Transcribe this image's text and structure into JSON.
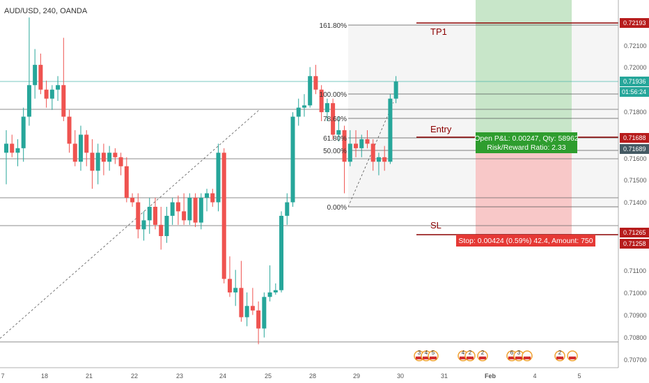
{
  "header": {
    "symbol_label": "AUD/USD, 240, OANDA"
  },
  "colors": {
    "up": "#26a69a",
    "down": "#ef5350",
    "line_dark": "#8b0000",
    "fib": "#555555"
  },
  "chart_data": {
    "type": "candlestick",
    "y_axis_ticks": [
      "0.72100",
      "0.72000",
      "0.71800",
      "0.71600",
      "0.71500",
      "0.71400",
      "0.71100",
      "0.71000",
      "0.70900",
      "0.70800",
      "0.70700"
    ],
    "x_axis_ticks": [
      "7",
      "18",
      "21",
      "22",
      "23",
      "24",
      "25",
      "28",
      "29",
      "30",
      "31",
      "Feb",
      "4",
      "5"
    ],
    "price_tags": [
      {
        "value": "0.72193",
        "color": "#b71c1c"
      },
      {
        "value": "0.71936",
        "color": "#26a69a"
      },
      {
        "value": "01:56:24",
        "color": "#26a69a"
      },
      {
        "value": "0.71688",
        "color": "#b71c1c"
      },
      {
        "value": "0.71689",
        "color": "#455a64"
      },
      {
        "value": "0.71265",
        "color": "#b71c1c"
      },
      {
        "value": "0.71258",
        "color": "#b71c1c"
      }
    ],
    "fib_levels": [
      "161.80%",
      "100.00%",
      "78.60%",
      "61.80%",
      "50.00%",
      "0.00%"
    ],
    "trade_lines": [
      "TP1",
      "Entry",
      "SL"
    ],
    "position_box": {
      "pnl_label": "Open P&L: 0.00247, Qty: 58962",
      "ratio_label": "Risk/Reward Ratio: 2.33",
      "stop_label": "Stop: 0.00424 (0.59%) 42.4, Amount: 750"
    },
    "candles": [
      {
        "o": 0.7162,
        "h": 0.7172,
        "l": 0.7148,
        "c": 0.7166
      },
      {
        "o": 0.7166,
        "h": 0.717,
        "l": 0.716,
        "c": 0.7162
      },
      {
        "o": 0.7162,
        "h": 0.7168,
        "l": 0.7156,
        "c": 0.7164
      },
      {
        "o": 0.7164,
        "h": 0.7182,
        "l": 0.7158,
        "c": 0.7178
      },
      {
        "o": 0.7178,
        "h": 0.7222,
        "l": 0.7174,
        "c": 0.7192
      },
      {
        "o": 0.7192,
        "h": 0.7208,
        "l": 0.7186,
        "c": 0.7201
      },
      {
        "o": 0.7201,
        "h": 0.7206,
        "l": 0.7188,
        "c": 0.719
      },
      {
        "o": 0.719,
        "h": 0.7194,
        "l": 0.7182,
        "c": 0.7186
      },
      {
        "o": 0.7186,
        "h": 0.7192,
        "l": 0.7181,
        "c": 0.719
      },
      {
        "o": 0.719,
        "h": 0.7196,
        "l": 0.7185,
        "c": 0.7192
      },
      {
        "o": 0.7192,
        "h": 0.7213,
        "l": 0.7176,
        "c": 0.7178
      },
      {
        "o": 0.7178,
        "h": 0.7181,
        "l": 0.7162,
        "c": 0.7166
      },
      {
        "o": 0.7166,
        "h": 0.7172,
        "l": 0.7156,
        "c": 0.7158
      },
      {
        "o": 0.7158,
        "h": 0.7174,
        "l": 0.7154,
        "c": 0.717
      },
      {
        "o": 0.717,
        "h": 0.7172,
        "l": 0.7156,
        "c": 0.7162
      },
      {
        "o": 0.7162,
        "h": 0.7168,
        "l": 0.7146,
        "c": 0.7154
      },
      {
        "o": 0.7154,
        "h": 0.7166,
        "l": 0.7148,
        "c": 0.7162
      },
      {
        "o": 0.7162,
        "h": 0.7166,
        "l": 0.7152,
        "c": 0.7158
      },
      {
        "o": 0.7158,
        "h": 0.7165,
        "l": 0.7154,
        "c": 0.7162
      },
      {
        "o": 0.7162,
        "h": 0.7164,
        "l": 0.7157,
        "c": 0.716
      },
      {
        "o": 0.716,
        "h": 0.7162,
        "l": 0.7152,
        "c": 0.7156
      },
      {
        "o": 0.7156,
        "h": 0.716,
        "l": 0.714,
        "c": 0.7142
      },
      {
        "o": 0.7142,
        "h": 0.7144,
        "l": 0.7138,
        "c": 0.714
      },
      {
        "o": 0.714,
        "h": 0.7144,
        "l": 0.7124,
        "c": 0.7128
      },
      {
        "o": 0.7128,
        "h": 0.7136,
        "l": 0.7123,
        "c": 0.7132
      },
      {
        "o": 0.7132,
        "h": 0.7142,
        "l": 0.7126,
        "c": 0.7138
      },
      {
        "o": 0.7138,
        "h": 0.7142,
        "l": 0.7128,
        "c": 0.713
      },
      {
        "o": 0.713,
        "h": 0.7138,
        "l": 0.7119,
        "c": 0.7125
      },
      {
        "o": 0.7125,
        "h": 0.7138,
        "l": 0.7122,
        "c": 0.7134
      },
      {
        "o": 0.7134,
        "h": 0.7142,
        "l": 0.713,
        "c": 0.714
      },
      {
        "o": 0.714,
        "h": 0.7143,
        "l": 0.713,
        "c": 0.7136
      },
      {
        "o": 0.7136,
        "h": 0.7144,
        "l": 0.713,
        "c": 0.7132
      },
      {
        "o": 0.7132,
        "h": 0.7144,
        "l": 0.713,
        "c": 0.7142
      },
      {
        "o": 0.7142,
        "h": 0.7144,
        "l": 0.7129,
        "c": 0.7131
      },
      {
        "o": 0.7131,
        "h": 0.7144,
        "l": 0.7128,
        "c": 0.7142
      },
      {
        "o": 0.7142,
        "h": 0.7146,
        "l": 0.7136,
        "c": 0.7144
      },
      {
        "o": 0.7144,
        "h": 0.7146,
        "l": 0.7138,
        "c": 0.714
      },
      {
        "o": 0.714,
        "h": 0.7166,
        "l": 0.7136,
        "c": 0.7162
      },
      {
        "o": 0.7162,
        "h": 0.7164,
        "l": 0.7104,
        "c": 0.7106
      },
      {
        "o": 0.7106,
        "h": 0.7116,
        "l": 0.7098,
        "c": 0.71
      },
      {
        "o": 0.71,
        "h": 0.711,
        "l": 0.7094,
        "c": 0.7102
      },
      {
        "o": 0.7102,
        "h": 0.7114,
        "l": 0.7087,
        "c": 0.7089
      },
      {
        "o": 0.7089,
        "h": 0.71,
        "l": 0.7085,
        "c": 0.7094
      },
      {
        "o": 0.7094,
        "h": 0.7102,
        "l": 0.709,
        "c": 0.7092
      },
      {
        "o": 0.7092,
        "h": 0.7096,
        "l": 0.7077,
        "c": 0.7084
      },
      {
        "o": 0.7084,
        "h": 0.71,
        "l": 0.708,
        "c": 0.7098
      },
      {
        "o": 0.7098,
        "h": 0.7112,
        "l": 0.7096,
        "c": 0.71
      },
      {
        "o": 0.71,
        "h": 0.7104,
        "l": 0.7099,
        "c": 0.7101
      },
      {
        "o": 0.7101,
        "h": 0.7136,
        "l": 0.71,
        "c": 0.7134
      },
      {
        "o": 0.7134,
        "h": 0.7144,
        "l": 0.713,
        "c": 0.714
      },
      {
        "o": 0.714,
        "h": 0.718,
        "l": 0.7138,
        "c": 0.7178
      },
      {
        "o": 0.7178,
        "h": 0.7186,
        "l": 0.7174,
        "c": 0.7182
      },
      {
        "o": 0.7182,
        "h": 0.7188,
        "l": 0.7178,
        "c": 0.7183
      },
      {
        "o": 0.7183,
        "h": 0.72,
        "l": 0.7182,
        "c": 0.7196
      },
      {
        "o": 0.7196,
        "h": 0.7201,
        "l": 0.7188,
        "c": 0.719
      },
      {
        "o": 0.719,
        "h": 0.7192,
        "l": 0.7176,
        "c": 0.718
      },
      {
        "o": 0.718,
        "h": 0.7186,
        "l": 0.7176,
        "c": 0.7184
      },
      {
        "o": 0.7184,
        "h": 0.7186,
        "l": 0.7168,
        "c": 0.717
      },
      {
        "o": 0.717,
        "h": 0.7178,
        "l": 0.7167,
        "c": 0.7172
      },
      {
        "o": 0.7172,
        "h": 0.7174,
        "l": 0.7144,
        "c": 0.7158
      },
      {
        "o": 0.7158,
        "h": 0.7172,
        "l": 0.7156,
        "c": 0.7166
      },
      {
        "o": 0.7166,
        "h": 0.7172,
        "l": 0.716,
        "c": 0.7164
      },
      {
        "o": 0.7164,
        "h": 0.717,
        "l": 0.716,
        "c": 0.7168
      },
      {
        "o": 0.7168,
        "h": 0.7172,
        "l": 0.7164,
        "c": 0.7166
      },
      {
        "o": 0.7166,
        "h": 0.7168,
        "l": 0.7154,
        "c": 0.7158
      },
      {
        "o": 0.7158,
        "h": 0.7162,
        "l": 0.7152,
        "c": 0.716
      },
      {
        "o": 0.716,
        "h": 0.7165,
        "l": 0.7154,
        "c": 0.7158
      },
      {
        "o": 0.7158,
        "h": 0.7188,
        "l": 0.7157,
        "c": 0.7186
      },
      {
        "o": 0.7186,
        "h": 0.7196,
        "l": 0.7184,
        "c": 0.71936
      }
    ]
  },
  "calendar": {
    "groups": [
      {
        "labels": [
          "3",
          "4",
          "5"
        ]
      },
      {
        "labels": [
          "4",
          "2"
        ]
      },
      {
        "labels": [
          "2"
        ]
      },
      {
        "labels": [
          "6",
          "3"
        ]
      },
      {
        "labels": [
          ""
        ]
      },
      {
        "labels": [
          "2"
        ]
      },
      {
        "labels": [
          ""
        ]
      }
    ]
  }
}
